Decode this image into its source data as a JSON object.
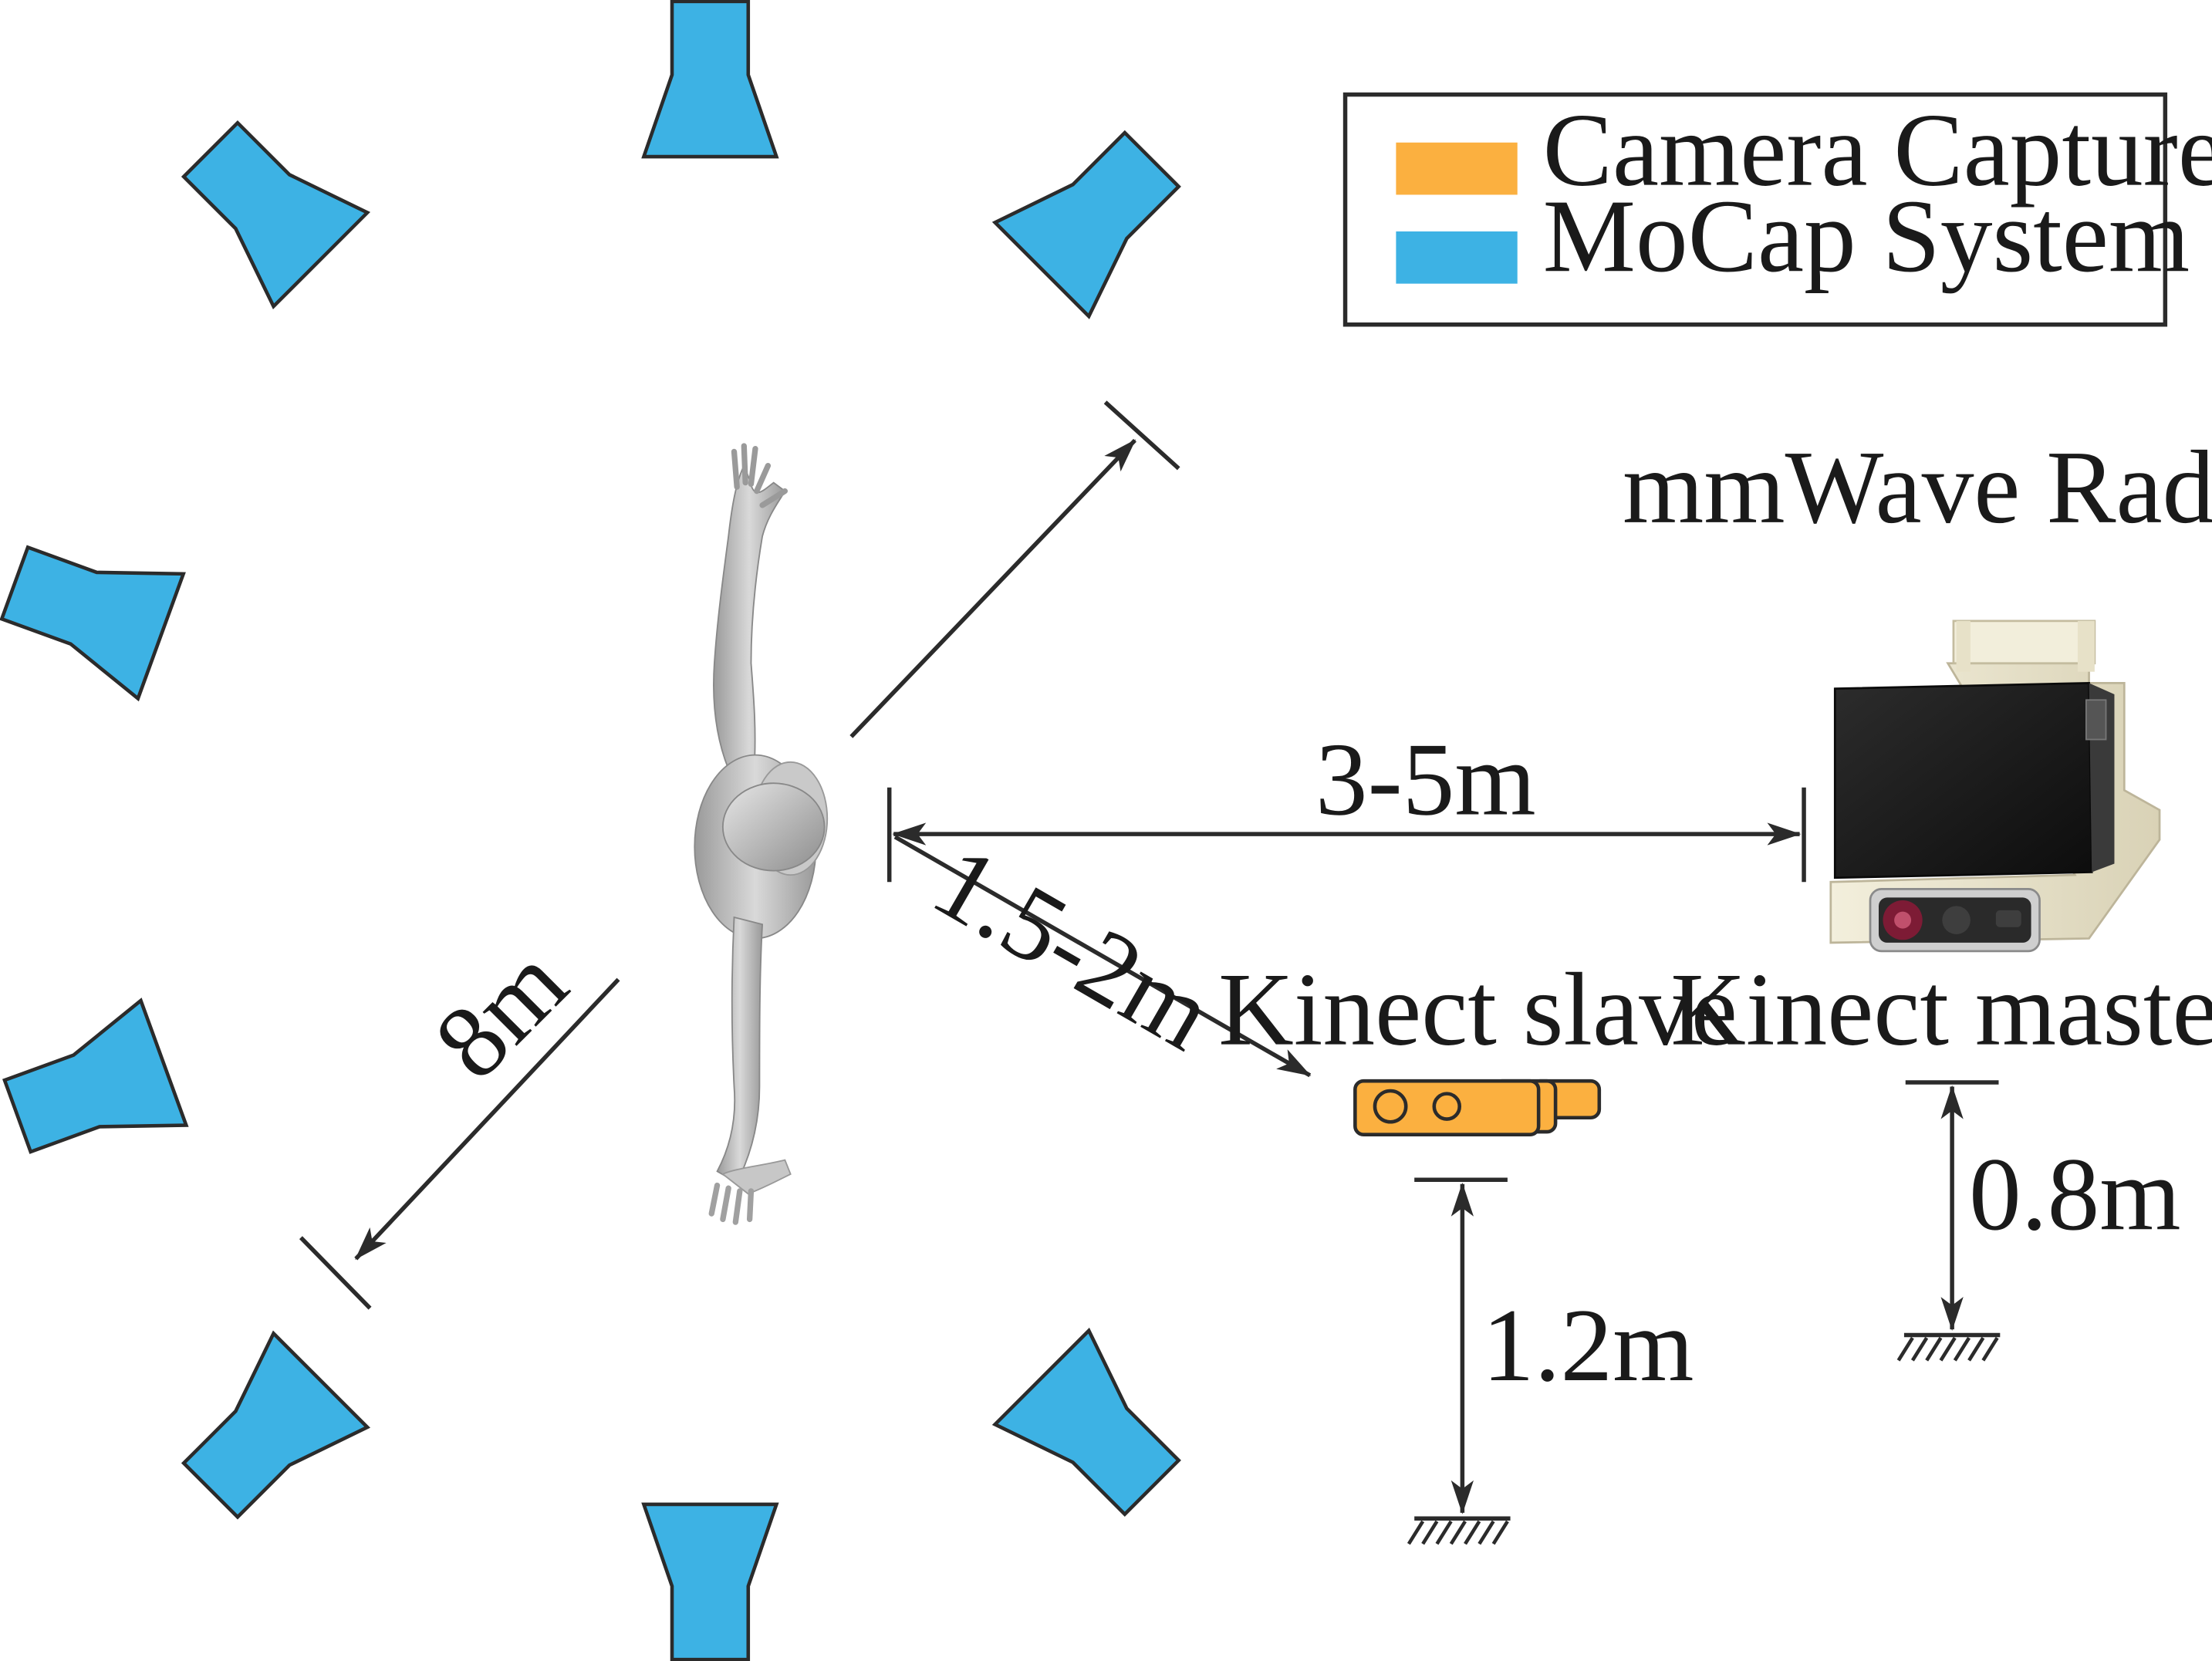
{
  "legend": {
    "items": [
      {
        "label": "Camera Capture System",
        "color": "#FBB040"
      },
      {
        "label": "MoCap System",
        "color": "#3DB2E4"
      }
    ]
  },
  "labels": {
    "radar": "mmWave Radar",
    "kinect_master": "Kinect master",
    "kinect_slave": "Kinect slave"
  },
  "distances": {
    "radar_range": "3-5m",
    "slave_range": "1.5-2m",
    "capture_diameter": "8m",
    "slave_height": "1.2m",
    "master_height": "0.8m"
  },
  "colors": {
    "mocap": "#3DB2E4",
    "camera": "#FBB040",
    "stroke": "#2b2b2b",
    "figure": "#bdbdbd"
  },
  "icons": {
    "mocap_camera": "mocap-camera-icon",
    "kinect": "kinect-camera-icon",
    "radar": "radar-device-icon",
    "ground": "ground-hatch-icon",
    "figure": "human-figure-icon"
  }
}
